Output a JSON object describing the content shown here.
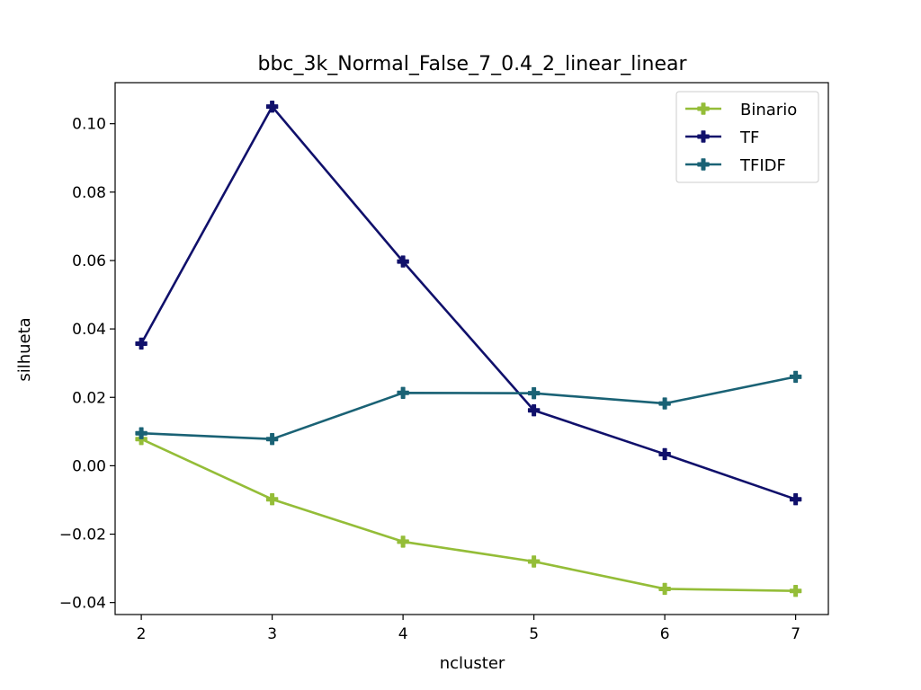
{
  "chart_data": {
    "type": "line",
    "title": "bbc_3k_Normal_False_7_0.4_2_linear_linear",
    "xlabel": "ncluster",
    "ylabel": "silhueta",
    "x": [
      2,
      3,
      4,
      5,
      6,
      7
    ],
    "xlim": [
      1.8,
      7.25
    ],
    "ylim": [
      -0.0435,
      0.112
    ],
    "xticks": [
      2,
      3,
      4,
      5,
      6,
      7
    ],
    "xtick_labels": [
      "2",
      "3",
      "4",
      "5",
      "6",
      "7"
    ],
    "yticks": [
      -0.04,
      -0.02,
      0.0,
      0.02,
      0.04,
      0.06,
      0.08,
      0.1
    ],
    "ytick_labels": [
      "−0.04",
      "−0.02",
      "0.00",
      "0.02",
      "0.04",
      "0.06",
      "0.08",
      "0.10"
    ],
    "grid": false,
    "legend_position": "top-right",
    "series": [
      {
        "name": "Binario",
        "color": "#94bd38",
        "values": [
          0.0078,
          -0.0098,
          -0.0222,
          -0.028,
          -0.036,
          -0.0366
        ]
      },
      {
        "name": "TF",
        "color": "#10106b",
        "values": [
          0.0357,
          0.105,
          0.0597,
          0.0162,
          0.0034,
          -0.0098
        ]
      },
      {
        "name": "TFIDF",
        "color": "#1a6275",
        "values": [
          0.0095,
          0.0078,
          0.0213,
          0.0212,
          0.0182,
          0.026
        ]
      }
    ]
  }
}
